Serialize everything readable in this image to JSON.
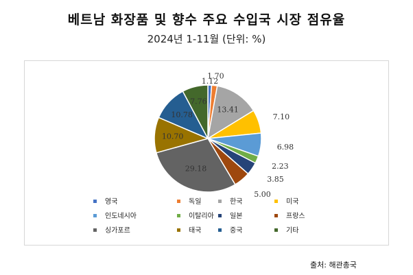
{
  "title": "베트남 화장품 및 향수 주요 수입국 시장 점유율",
  "subtitle": "2024년 1-11월 (단위: %)",
  "source": "출처: 해관총국",
  "chart_data": {
    "type": "pie",
    "title": "베트남 화장품 및 향수 주요 수입국 시장 점유율",
    "subtitle": "2024년 1-11월 (단위: %)",
    "unit": "%",
    "legend_position": "bottom",
    "categories": [
      "영국",
      "독일",
      "한국",
      "미국",
      "인도네시아",
      "이탈리아",
      "일본",
      "프랑스",
      "싱가포르",
      "태국",
      "중국",
      "기타"
    ],
    "values": [
      1.12,
      1.7,
      13.41,
      7.1,
      6.98,
      2.23,
      3.85,
      5.0,
      29.18,
      10.7,
      10.78,
      7.76
    ],
    "value_labels": [
      "1.12",
      "1.70",
      "13.41",
      "7.10",
      "6.98",
      "2.23",
      "3.85",
      "5.00",
      "29.18",
      "10.70",
      "10.78",
      "7.76"
    ],
    "colors": [
      "#4472C4",
      "#ED7D31",
      "#A5A5A5",
      "#FFC000",
      "#5B9BD5",
      "#70AD47",
      "#264478",
      "#9E480E",
      "#636363",
      "#997300",
      "#255E91",
      "#43682B"
    ]
  }
}
